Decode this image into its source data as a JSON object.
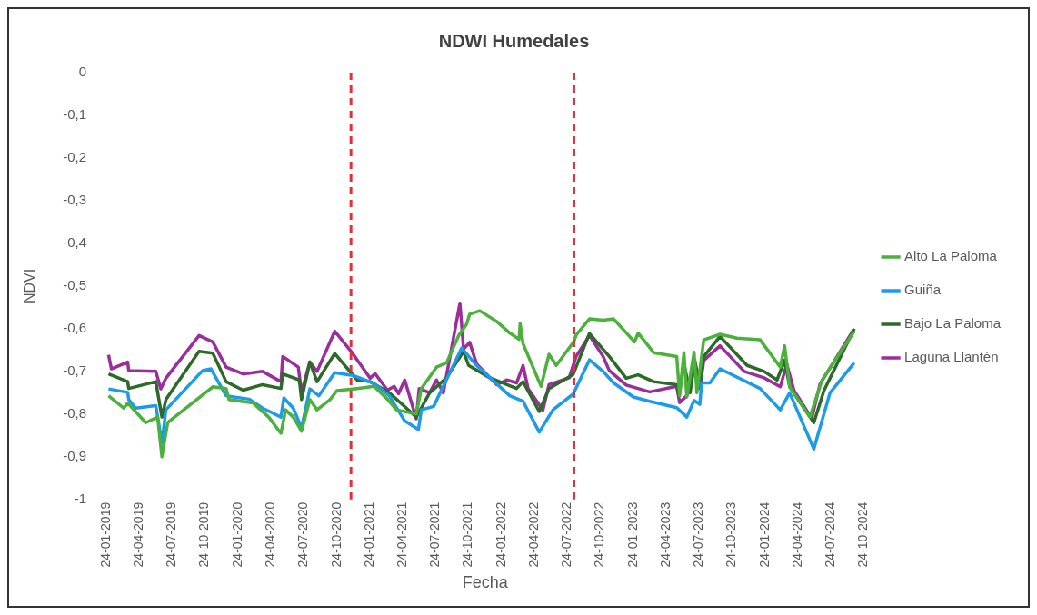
{
  "chart_data": {
    "type": "line",
    "title": "NDWI Humedales",
    "xlabel": "Fecha",
    "ylabel": "NDVI",
    "legend": "right",
    "grid": false,
    "marker": "none",
    "line_style": "solid",
    "xlim": [
      "2019-01-24",
      "2024-10-24"
    ],
    "xticks": [
      {
        "value": "2019-01-24",
        "label": "24-01-2019"
      },
      {
        "value": "2019-04-24",
        "label": "24-04-2019"
      },
      {
        "value": "2019-07-24",
        "label": "24-07-2019"
      },
      {
        "value": "2019-10-24",
        "label": "24-10-2019"
      },
      {
        "value": "2020-01-24",
        "label": "24-01-2020"
      },
      {
        "value": "2020-04-24",
        "label": "24-04-2020"
      },
      {
        "value": "2020-07-24",
        "label": "24-07-2020"
      },
      {
        "value": "2020-10-24",
        "label": "24-10-2020"
      },
      {
        "value": "2021-01-24",
        "label": "24-01-2021"
      },
      {
        "value": "2021-04-24",
        "label": "24-04-2021"
      },
      {
        "value": "2021-07-24",
        "label": "24-07-2021"
      },
      {
        "value": "2021-10-24",
        "label": "24-10-2021"
      },
      {
        "value": "2022-01-24",
        "label": "24-01-2022"
      },
      {
        "value": "2022-04-24",
        "label": "24-04-2022"
      },
      {
        "value": "2022-07-24",
        "label": "24-07-2022"
      },
      {
        "value": "2022-10-24",
        "label": "24-10-2022"
      },
      {
        "value": "2023-01-24",
        "label": "24-01-2023"
      },
      {
        "value": "2023-04-24",
        "label": "24-04-2023"
      },
      {
        "value": "2023-07-24",
        "label": "24-07-2023"
      },
      {
        "value": "2023-10-24",
        "label": "24-10-2023"
      },
      {
        "value": "2024-01-24",
        "label": "24-01-2024"
      },
      {
        "value": "2024-04-24",
        "label": "24-04-2024"
      },
      {
        "value": "2024-07-24",
        "label": "24-07-2024"
      },
      {
        "value": "2024-10-24",
        "label": "24-10-2024"
      }
    ],
    "ylim": [
      -1,
      0
    ],
    "yticks": [
      0,
      {
        "value": -0.1,
        "label": "-0,1"
      },
      {
        "value": -0.2,
        "label": "-0,2"
      },
      {
        "value": -0.3,
        "label": "-0,3"
      },
      {
        "value": -0.4,
        "label": "-0,4"
      },
      {
        "value": -0.5,
        "label": "-0,5"
      },
      {
        "value": -0.6,
        "label": "-0,6"
      },
      {
        "value": -0.7,
        "label": "-0,7"
      },
      {
        "value": -0.8,
        "label": "-0,8"
      },
      {
        "value": -0.9,
        "label": "-0,9"
      },
      -1
    ],
    "ref_lines": [
      {
        "axis": "x",
        "value": "2020-12-02",
        "color": "#e0303a",
        "line_style": "dashed"
      },
      {
        "axis": "x",
        "value": "2022-08-12",
        "color": "#e0303a",
        "line_style": "dashed"
      }
    ],
    "series": [
      {
        "name": "Alto La Paloma",
        "color": "#4cb03c",
        "x": [
          "2019-01-30",
          "2019-03-13",
          "2019-03-24",
          "2019-05-13",
          "2019-06-15",
          "2019-06-27",
          "2019-07-13",
          "2019-11-15",
          "2019-12-22",
          "2019-12-30",
          "2020-03-06",
          "2020-04-18",
          "2020-05-22",
          "2020-06-04",
          "2020-06-25",
          "2020-07-18",
          "2020-08-10",
          "2020-08-30",
          "2020-10-05",
          "2020-10-24",
          "2020-12-19",
          "2021-02-04",
          "2021-03-13",
          "2021-04-07",
          "2021-06-01",
          "2021-06-15",
          "2021-07-27",
          "2021-08-24",
          "2021-09-27",
          "2021-10-18",
          "2021-10-27",
          "2021-11-24",
          "2022-01-10",
          "2022-02-15",
          "2022-03-13",
          "2022-03-16",
          "2022-03-24",
          "2022-05-13",
          "2022-06-04",
          "2022-06-24",
          "2022-08-12",
          "2022-08-18",
          "2022-09-24",
          "2022-11-01",
          "2022-11-30",
          "2023-01-27",
          "2023-02-06",
          "2023-03-21",
          "2023-05-24",
          "2023-06-01",
          "2023-06-13",
          "2023-06-21",
          "2023-07-11",
          "2023-07-19",
          "2023-08-07",
          "2023-09-21",
          "2023-11-07",
          "2024-01-10",
          "2024-03-06",
          "2024-03-18",
          "2024-04-01",
          "2024-05-27",
          "2024-06-30",
          "2024-09-27"
        ],
        "values": [
          -0.757,
          -0.786,
          -0.774,
          -0.82,
          -0.807,
          -0.9,
          -0.82,
          -0.736,
          -0.74,
          -0.766,
          -0.774,
          -0.807,
          -0.845,
          -0.79,
          -0.807,
          -0.84,
          -0.766,
          -0.79,
          -0.766,
          -0.745,
          -0.74,
          -0.735,
          -0.765,
          -0.79,
          -0.8,
          -0.74,
          -0.69,
          -0.68,
          -0.615,
          -0.59,
          -0.566,
          -0.558,
          -0.583,
          -0.61,
          -0.625,
          -0.588,
          -0.635,
          -0.735,
          -0.66,
          -0.686,
          -0.63,
          -0.615,
          -0.577,
          -0.58,
          -0.577,
          -0.631,
          -0.61,
          -0.656,
          -0.665,
          -0.757,
          -0.656,
          -0.76,
          -0.655,
          -0.75,
          -0.626,
          -0.613,
          -0.622,
          -0.626,
          -0.69,
          -0.64,
          -0.736,
          -0.807,
          -0.72,
          -0.606
        ]
      },
      {
        "name": "Guiña",
        "color": "#1e9be8",
        "x": [
          "2019-01-30",
          "2019-03-24",
          "2019-03-27",
          "2019-04-15",
          "2019-06-10",
          "2019-06-27",
          "2019-07-08",
          "2019-10-18",
          "2019-11-10",
          "2019-12-22",
          "2020-02-24",
          "2020-04-01",
          "2020-05-22",
          "2020-05-30",
          "2020-06-25",
          "2020-07-18",
          "2020-08-10",
          "2020-09-04",
          "2020-10-18",
          "2020-12-10",
          "2021-02-04",
          "2021-03-18",
          "2021-04-30",
          "2021-06-07",
          "2021-06-15",
          "2021-07-19",
          "2021-10-05",
          "2021-11-15",
          "2022-02-15",
          "2022-03-24",
          "2022-05-08",
          "2022-06-15",
          "2022-08-10",
          "2022-09-24",
          "2022-11-01",
          "2022-11-30",
          "2023-01-24",
          "2023-03-10",
          "2023-05-24",
          "2023-06-21",
          "2023-07-11",
          "2023-07-27",
          "2023-08-01",
          "2023-08-24",
          "2023-09-21",
          "2024-01-10",
          "2024-03-06",
          "2024-04-01",
          "2024-06-07",
          "2024-07-22",
          "2024-09-27"
        ],
        "values": [
          -0.741,
          -0.749,
          -0.766,
          -0.786,
          -0.78,
          -0.867,
          -0.79,
          -0.698,
          -0.694,
          -0.757,
          -0.765,
          -0.786,
          -0.807,
          -0.762,
          -0.786,
          -0.832,
          -0.741,
          -0.757,
          -0.703,
          -0.71,
          -0.728,
          -0.757,
          -0.816,
          -0.836,
          -0.79,
          -0.782,
          -0.645,
          -0.686,
          -0.757,
          -0.77,
          -0.842,
          -0.79,
          -0.753,
          -0.673,
          -0.7,
          -0.727,
          -0.76,
          -0.77,
          -0.785,
          -0.807,
          -0.768,
          -0.777,
          -0.727,
          -0.727,
          -0.694,
          -0.74,
          -0.79,
          -0.75,
          -0.882,
          -0.75,
          -0.68
        ]
      },
      {
        "name": "Bajo La Paloma",
        "color": "#2d6a29",
        "x": [
          "2019-01-30",
          "2019-03-24",
          "2019-03-27",
          "2019-06-10",
          "2019-06-27",
          "2019-07-08",
          "2019-10-08",
          "2019-11-15",
          "2019-12-22",
          "2020-02-07",
          "2020-04-01",
          "2020-05-22",
          "2020-05-27",
          "2020-07-12",
          "2020-07-18",
          "2020-08-10",
          "2020-08-30",
          "2020-10-18",
          "2020-12-19",
          "2021-01-24",
          "2021-03-18",
          "2021-04-27",
          "2021-06-01",
          "2021-07-08",
          "2021-08-24",
          "2021-10-10",
          "2021-10-24",
          "2021-12-22",
          "2022-03-06",
          "2022-03-24",
          "2022-05-08",
          "2022-06-04",
          "2022-08-10",
          "2022-09-24",
          "2022-11-18",
          "2023-01-04",
          "2023-02-06",
          "2023-03-21",
          "2023-05-24",
          "2023-05-30",
          "2023-06-13",
          "2023-06-30",
          "2023-07-13",
          "2023-07-27",
          "2023-08-07",
          "2023-09-21",
          "2023-12-05",
          "2024-01-21",
          "2024-02-26",
          "2024-03-18",
          "2024-04-01",
          "2024-06-07",
          "2024-07-05",
          "2024-09-27"
        ],
        "values": [
          -0.706,
          -0.724,
          -0.74,
          -0.724,
          -0.807,
          -0.766,
          -0.653,
          -0.657,
          -0.724,
          -0.744,
          -0.731,
          -0.74,
          -0.706,
          -0.72,
          -0.766,
          -0.678,
          -0.724,
          -0.658,
          -0.72,
          -0.724,
          -0.75,
          -0.78,
          -0.807,
          -0.75,
          -0.715,
          -0.653,
          -0.686,
          -0.715,
          -0.74,
          -0.724,
          -0.794,
          -0.74,
          -0.707,
          -0.611,
          -0.665,
          -0.716,
          -0.708,
          -0.724,
          -0.731,
          -0.757,
          -0.682,
          -0.75,
          -0.674,
          -0.731,
          -0.665,
          -0.618,
          -0.686,
          -0.7,
          -0.72,
          -0.674,
          -0.736,
          -0.82,
          -0.745,
          -0.6
        ]
      },
      {
        "name": "Laguna Llantén",
        "color": "#9a2f9c",
        "x": [
          "2019-01-30",
          "2019-02-07",
          "2019-03-24",
          "2019-03-27",
          "2019-06-10",
          "2019-06-24",
          "2019-07-08",
          "2019-10-08",
          "2019-11-15",
          "2019-12-22",
          "2020-02-07",
          "2020-04-01",
          "2020-05-22",
          "2020-05-27",
          "2020-07-09",
          "2020-07-18",
          "2020-08-10",
          "2020-08-30",
          "2020-10-18",
          "2020-12-05",
          "2021-01-24",
          "2021-02-07",
          "2021-03-13",
          "2021-04-01",
          "2021-04-13",
          "2021-04-30",
          "2021-06-01",
          "2021-06-09",
          "2021-07-08",
          "2021-07-27",
          "2021-08-15",
          "2021-09-30",
          "2021-10-10",
          "2021-10-27",
          "2021-11-15",
          "2022-01-10",
          "2022-02-07",
          "2022-03-06",
          "2022-03-24",
          "2022-04-07",
          "2022-05-18",
          "2022-06-04",
          "2022-07-30",
          "2022-08-18",
          "2022-09-24",
          "2022-11-01",
          "2022-11-18",
          "2023-01-04",
          "2023-03-10",
          "2023-05-24",
          "2023-06-01",
          "2023-06-21",
          "2023-07-13",
          "2023-07-27",
          "2023-08-07",
          "2023-09-21",
          "2023-11-27",
          "2024-01-21",
          "2024-03-06",
          "2024-03-24",
          "2024-04-13",
          "2024-06-01",
          "2024-06-24",
          "2024-09-27"
        ],
        "values": [
          -0.661,
          -0.694,
          -0.678,
          -0.698,
          -0.7,
          -0.741,
          -0.716,
          -0.616,
          -0.631,
          -0.69,
          -0.706,
          -0.7,
          -0.724,
          -0.665,
          -0.69,
          -0.749,
          -0.678,
          -0.7,
          -0.606,
          -0.656,
          -0.716,
          -0.705,
          -0.744,
          -0.735,
          -0.752,
          -0.72,
          -0.811,
          -0.74,
          -0.75,
          -0.72,
          -0.75,
          -0.54,
          -0.648,
          -0.632,
          -0.682,
          -0.731,
          -0.72,
          -0.727,
          -0.686,
          -0.74,
          -0.791,
          -0.731,
          -0.715,
          -0.665,
          -0.616,
          -0.665,
          -0.698,
          -0.732,
          -0.748,
          -0.735,
          -0.773,
          -0.757,
          -0.69,
          -0.74,
          -0.674,
          -0.64,
          -0.7,
          -0.715,
          -0.736,
          -0.683,
          -0.745,
          -0.81,
          -0.73,
          -0.6
        ]
      }
    ]
  }
}
